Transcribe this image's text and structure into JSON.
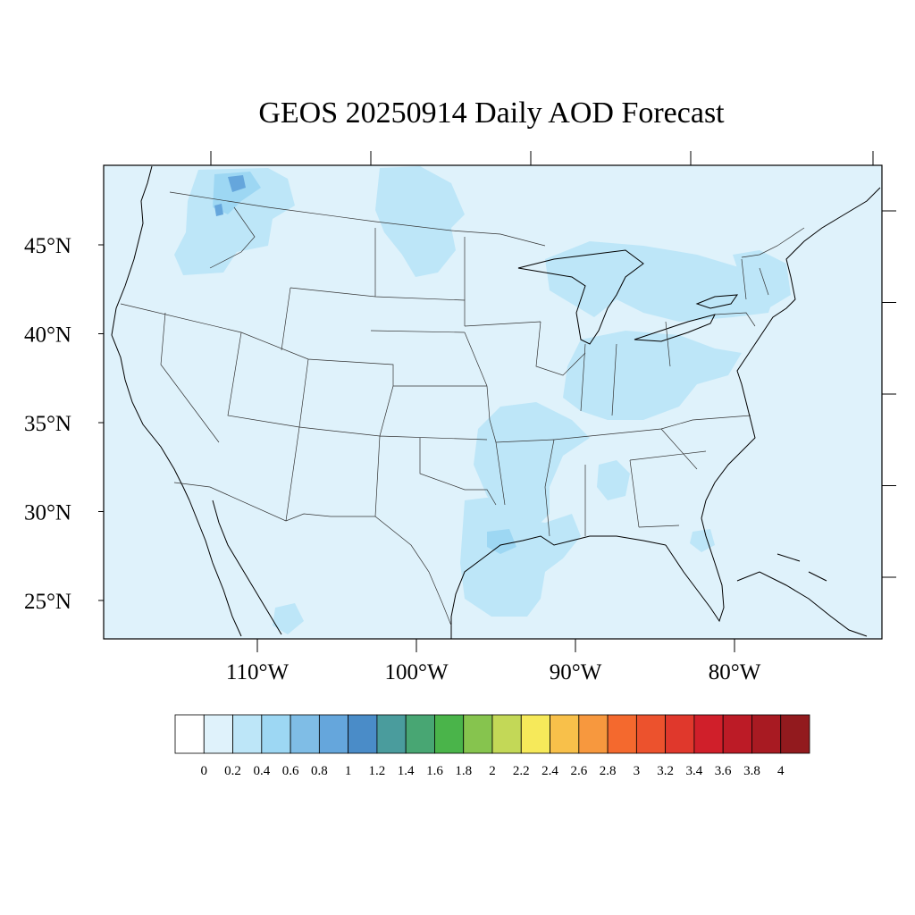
{
  "title": "GEOS 20250914 Daily AOD Forecast",
  "lat_labels": [
    {
      "lat": 45,
      "text": "45°N"
    },
    {
      "lat": 40,
      "text": "40°N"
    },
    {
      "lat": 35,
      "text": "35°N"
    },
    {
      "lat": 30,
      "text": "30°N"
    },
    {
      "lat": 25,
      "text": "25°N"
    }
  ],
  "lon_labels": [
    {
      "lon": -110,
      "text": "110°W"
    },
    {
      "lon": -100,
      "text": "100°W"
    },
    {
      "lon": -90,
      "text": "90°W"
    },
    {
      "lon": -80,
      "text": "80°W"
    }
  ],
  "colorbar": {
    "labels": [
      "0",
      "0.2",
      "0.4",
      "0.6",
      "0.8",
      "1",
      "1.2",
      "1.4",
      "1.6",
      "1.8",
      "2",
      "2.2",
      "2.4",
      "2.6",
      "2.8",
      "3",
      "3.2",
      "3.4",
      "3.6",
      "3.8",
      "4"
    ],
    "colors": [
      "#ffffff",
      "#dff2fb",
      "#bde6f8",
      "#9dd7f3",
      "#7fbde6",
      "#65a6dc",
      "#4a8cc8",
      "#4a9c9d",
      "#48a673",
      "#4ab44a",
      "#86c44e",
      "#c3d857",
      "#f6e95a",
      "#f8c04a",
      "#f7983e",
      "#f4692e",
      "#ec522d",
      "#e0382c",
      "#d01f2a",
      "#bc1b26",
      "#a81a22",
      "#921a1e"
    ]
  },
  "map_background_color": "#dff2fb",
  "aod_regions": [
    {
      "name": "pacific-northwest-plume",
      "level": 0.4
    },
    {
      "name": "northern-plains-plume",
      "level": 0.4
    },
    {
      "name": "ohio-valley",
      "level": 0.4
    },
    {
      "name": "great-lakes",
      "level": 0.4
    },
    {
      "name": "lower-mississippi",
      "level": 0.4
    },
    {
      "name": "texas-gulf-coast",
      "level": 0.4
    },
    {
      "name": "western-washington-core",
      "level": 0.8
    }
  ]
}
